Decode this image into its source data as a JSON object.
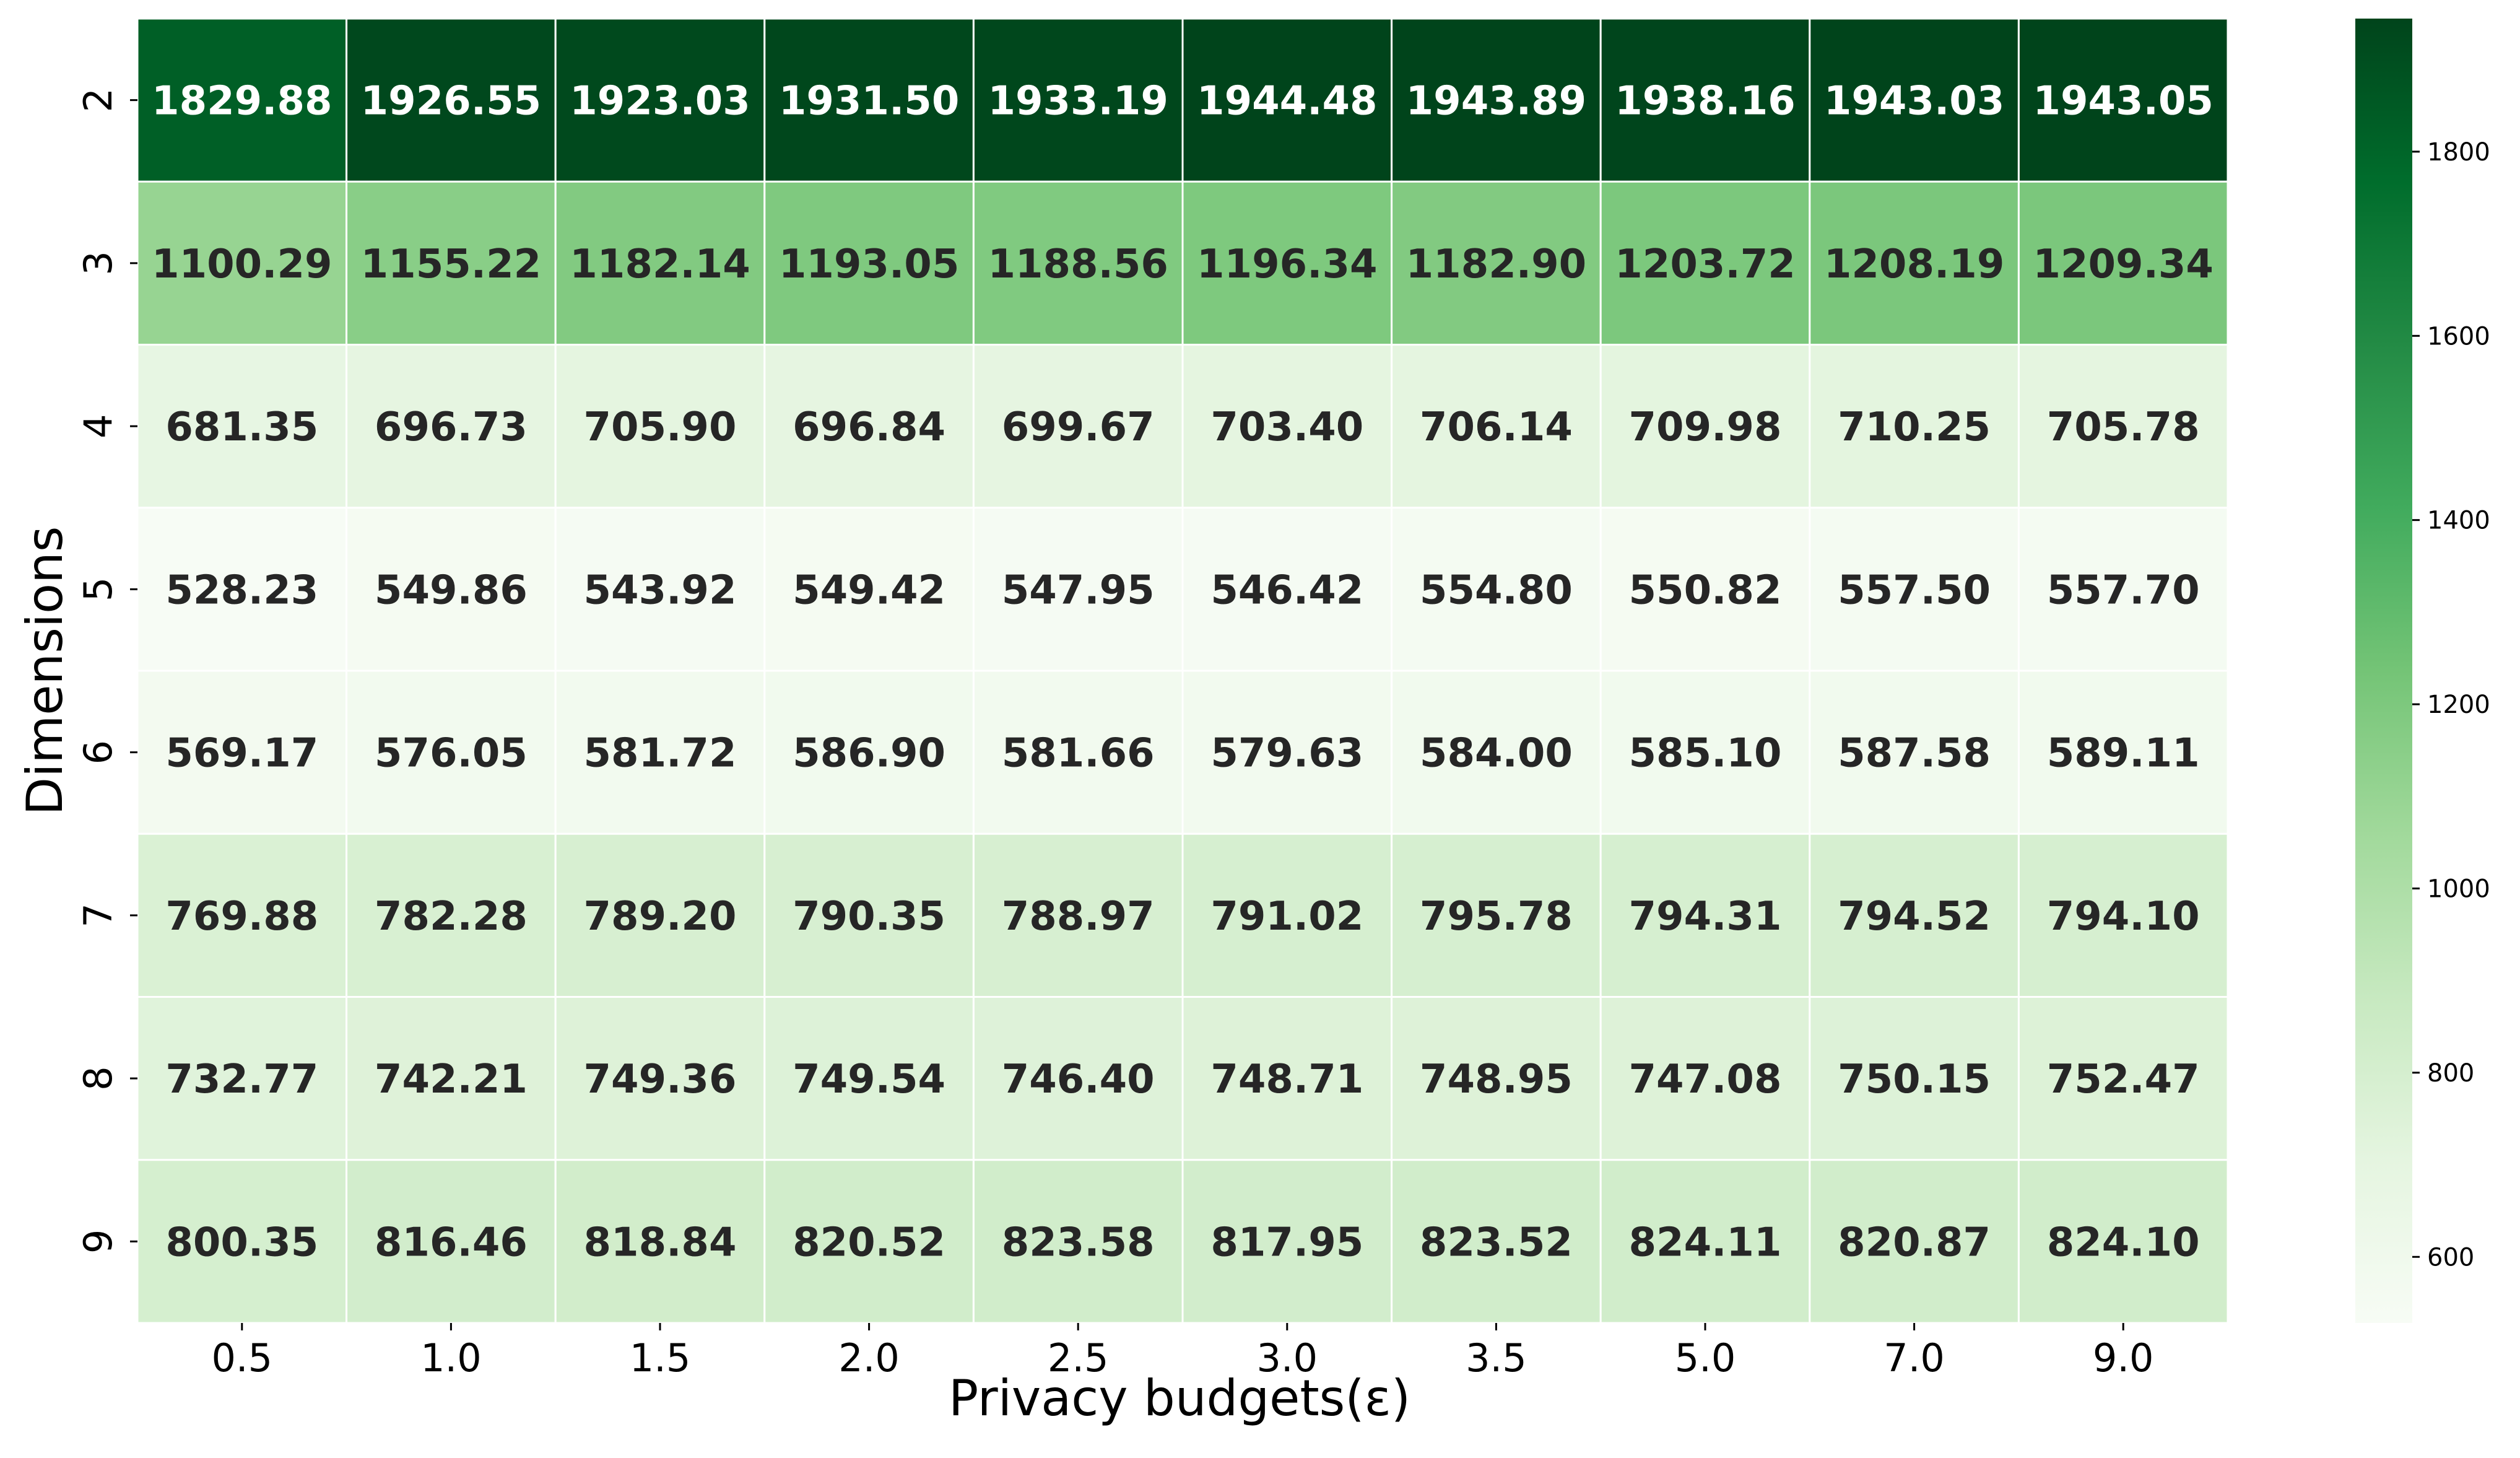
{
  "chart_data": {
    "type": "heatmap",
    "title": "",
    "xlabel": "Privacy budgets(ε)",
    "ylabel": "Dimensions",
    "x_categories": [
      "0.5",
      "1.0",
      "1.5",
      "2.0",
      "2.5",
      "3.0",
      "3.5",
      "5.0",
      "7.0",
      "9.0"
    ],
    "y_categories": [
      "2",
      "3",
      "4",
      "5",
      "6",
      "7",
      "8",
      "9"
    ],
    "values": [
      [
        1829.88,
        1926.55,
        1923.03,
        1931.5,
        1933.19,
        1944.48,
        1943.89,
        1938.16,
        1943.03,
        1943.05
      ],
      [
        1100.29,
        1155.22,
        1182.14,
        1193.05,
        1188.56,
        1196.34,
        1182.9,
        1203.72,
        1208.19,
        1209.34
      ],
      [
        681.35,
        696.73,
        705.9,
        696.84,
        699.67,
        703.4,
        706.14,
        709.98,
        710.25,
        705.78
      ],
      [
        528.23,
        549.86,
        543.92,
        549.42,
        547.95,
        546.42,
        554.8,
        550.82,
        557.5,
        557.7
      ],
      [
        569.17,
        576.05,
        581.72,
        586.9,
        581.66,
        579.63,
        584.0,
        585.1,
        587.58,
        589.11
      ],
      [
        769.88,
        782.28,
        789.2,
        790.35,
        788.97,
        791.02,
        795.78,
        794.31,
        794.52,
        794.1
      ],
      [
        732.77,
        742.21,
        749.36,
        749.54,
        746.4,
        748.71,
        748.95,
        747.08,
        750.15,
        752.47
      ],
      [
        800.35,
        816.46,
        818.84,
        820.52,
        823.58,
        817.95,
        823.52,
        824.11,
        820.87,
        824.1
      ]
    ],
    "value_labels": [
      [
        "1829.88",
        "1926.55",
        "1923.03",
        "1931.50",
        "1933.19",
        "1944.48",
        "1943.89",
        "1938.16",
        "1943.03",
        "1943.05"
      ],
      [
        "1100.29",
        "1155.22",
        "1182.14",
        "1193.05",
        "1188.56",
        "1196.34",
        "1182.90",
        "1203.72",
        "1208.19",
        "1209.34"
      ],
      [
        "681.35",
        "696.73",
        "705.90",
        "696.84",
        "699.67",
        "703.40",
        "706.14",
        "709.98",
        "710.25",
        "705.78"
      ],
      [
        "528.23",
        "549.86",
        "543.92",
        "549.42",
        "547.95",
        "546.42",
        "554.80",
        "550.82",
        "557.50",
        "557.70"
      ],
      [
        "569.17",
        "576.05",
        "581.72",
        "586.90",
        "581.66",
        "579.63",
        "584.00",
        "585.10",
        "587.58",
        "589.11"
      ],
      [
        "769.88",
        "782.28",
        "789.20",
        "790.35",
        "788.97",
        "791.02",
        "795.78",
        "794.31",
        "794.52",
        "794.10"
      ],
      [
        "732.77",
        "742.21",
        "749.36",
        "749.54",
        "746.40",
        "748.71",
        "748.95",
        "747.08",
        "750.15",
        "752.47"
      ],
      [
        "800.35",
        "816.46",
        "818.84",
        "820.52",
        "823.58",
        "817.95",
        "823.52",
        "824.11",
        "820.87",
        "824.10"
      ]
    ],
    "colormap": "Greens",
    "colormap_stops": [
      "#f7fcf5",
      "#e5f5e0",
      "#c7e9c0",
      "#a1d99b",
      "#74c476",
      "#41ab5d",
      "#238b45",
      "#006d2c",
      "#00441b"
    ],
    "color_range": [
      528.23,
      1944.48
    ],
    "colorbar_ticks": [
      600,
      800,
      1000,
      1200,
      1400,
      1600,
      1800
    ],
    "cell_border_color": "#ffffff",
    "light_text_color": "#ffffff",
    "dark_text_color": "#262626"
  }
}
